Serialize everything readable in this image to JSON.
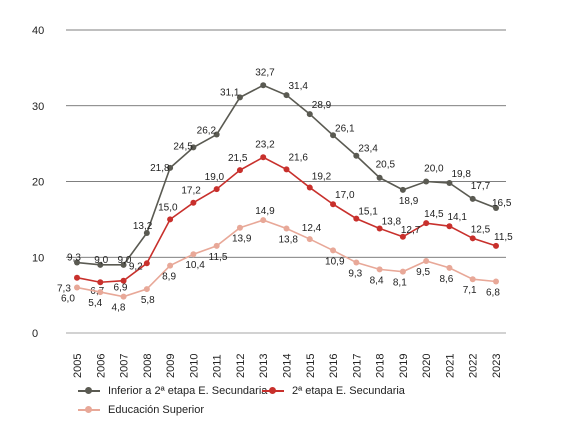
{
  "chart_data": {
    "type": "line",
    "x": [
      "2005",
      "2006",
      "2007",
      "2008",
      "2009",
      "2010",
      "2011",
      "2012",
      "2013",
      "2014",
      "2015",
      "2016",
      "2017",
      "2018",
      "2019",
      "2020",
      "2021",
      "2022",
      "2023"
    ],
    "ylim": [
      0,
      40
    ],
    "yticks": [
      0,
      10,
      20,
      30,
      40
    ],
    "grid": "horizontal",
    "legend_position": "bottom",
    "series": [
      {
        "name": "Inferior a 2ª etapa E. Secundaria",
        "color": "#5a5a52",
        "values": [
          9.3,
          9.0,
          9.0,
          13.2,
          21.8,
          24.5,
          26.2,
          31.1,
          32.7,
          31.4,
          28.9,
          26.1,
          23.4,
          20.5,
          18.9,
          20.0,
          19.8,
          17.7,
          16.5
        ],
        "labels": [
          "9,3",
          "9,0",
          "9,0",
          "13,2",
          "21,8",
          "24,5",
          "26,2",
          "31,1",
          "32,7",
          "31,4",
          "28,9",
          "26,1",
          "23,4",
          "20,5",
          "18,9",
          "20,0",
          "19,8",
          "17,7",
          "16,5"
        ]
      },
      {
        "name": "2ª etapa E. Secundaria",
        "color": "#c8302c",
        "values": [
          7.3,
          6.7,
          6.9,
          9.2,
          15.0,
          17.2,
          19.0,
          21.5,
          23.2,
          21.6,
          19.2,
          17.0,
          15.1,
          13.8,
          12.7,
          14.5,
          14.1,
          12.5,
          11.5
        ],
        "labels": [
          "7,3",
          "6,7",
          "6,9",
          "9,2",
          "15,0",
          "17,2",
          "19,0",
          "21,5",
          "23,2",
          "21,6",
          "19,2",
          "17,0",
          "15,1",
          "13,8",
          "12,7",
          "14,5",
          "14,1",
          "12,5",
          "11,5"
        ]
      },
      {
        "name": "Educación Superior",
        "color": "#e8a898",
        "values": [
          6.0,
          5.4,
          4.8,
          5.8,
          8.9,
          10.4,
          11.5,
          13.9,
          14.9,
          13.8,
          12.4,
          10.9,
          9.3,
          8.4,
          8.1,
          9.5,
          8.6,
          7.1,
          6.8
        ],
        "labels": [
          "6,0",
          "5,4",
          "4,8",
          "5,8",
          "8,9",
          "10,4",
          "11,5",
          "13,9",
          "14,9",
          "13,8",
          "12,4",
          "10,9",
          "9,3",
          "8,4",
          "8,1",
          "9,5",
          "8,6",
          "7,1",
          "6,8"
        ]
      }
    ]
  }
}
